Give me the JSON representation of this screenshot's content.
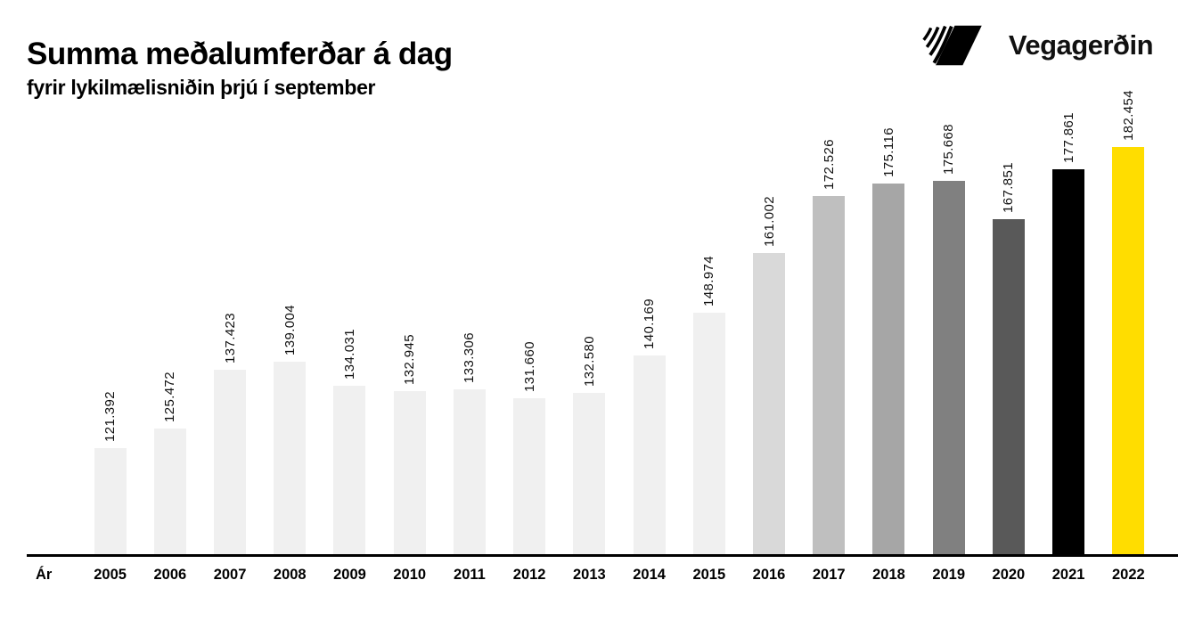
{
  "header": {
    "title": "Summa meðalumferðar á dag",
    "subtitle": "fyrir lykilmælisniðin þrjú í september"
  },
  "logo": {
    "text": "Vegagerðin",
    "mark": "vegagerdin-stripes-mark"
  },
  "axis": {
    "x_label": "Ár"
  },
  "chart_data": {
    "type": "bar",
    "title": "Summa meðalumferðar á dag",
    "subtitle": "fyrir lykilmælisniðin þrjú í september",
    "xlabel": "Ár",
    "ylabel": "",
    "categories": [
      "2005",
      "2006",
      "2007",
      "2008",
      "2009",
      "2010",
      "2011",
      "2012",
      "2013",
      "2014",
      "2015",
      "2016",
      "2017",
      "2018",
      "2019",
      "2020",
      "2021",
      "2022"
    ],
    "values": [
      121392,
      125472,
      137423,
      139004,
      134031,
      132945,
      133306,
      131660,
      132580,
      140169,
      148974,
      161002,
      172526,
      175116,
      175668,
      167851,
      177861,
      182454
    ],
    "value_labels": [
      "121.392",
      "125.472",
      "137.423",
      "139.004",
      "134.031",
      "132.945",
      "133.306",
      "131.660",
      "132.580",
      "140.169",
      "148.974",
      "161.002",
      "172.526",
      "175.116",
      "175.668",
      "167.851",
      "177.861",
      "182.454"
    ],
    "bar_colors": [
      "#f0f0f0",
      "#f0f0f0",
      "#f0f0f0",
      "#f0f0f0",
      "#f0f0f0",
      "#f0f0f0",
      "#f0f0f0",
      "#f0f0f0",
      "#f0f0f0",
      "#f0f0f0",
      "#f0f0f0",
      "#d9d9d9",
      "#bfbfbf",
      "#a6a6a6",
      "#808080",
      "#595959",
      "#000000",
      "#ffdd00"
    ],
    "baseline": 100000,
    "ylim": [
      100000,
      185000
    ],
    "grid": false,
    "legend": false,
    "label_rotation": -90,
    "number_format": "is-IS dot thousands separator"
  },
  "colors": {
    "background": "#ffffff",
    "text": "#000000",
    "accent_yellow": "#ffdd00",
    "axis_line": "#000000"
  }
}
